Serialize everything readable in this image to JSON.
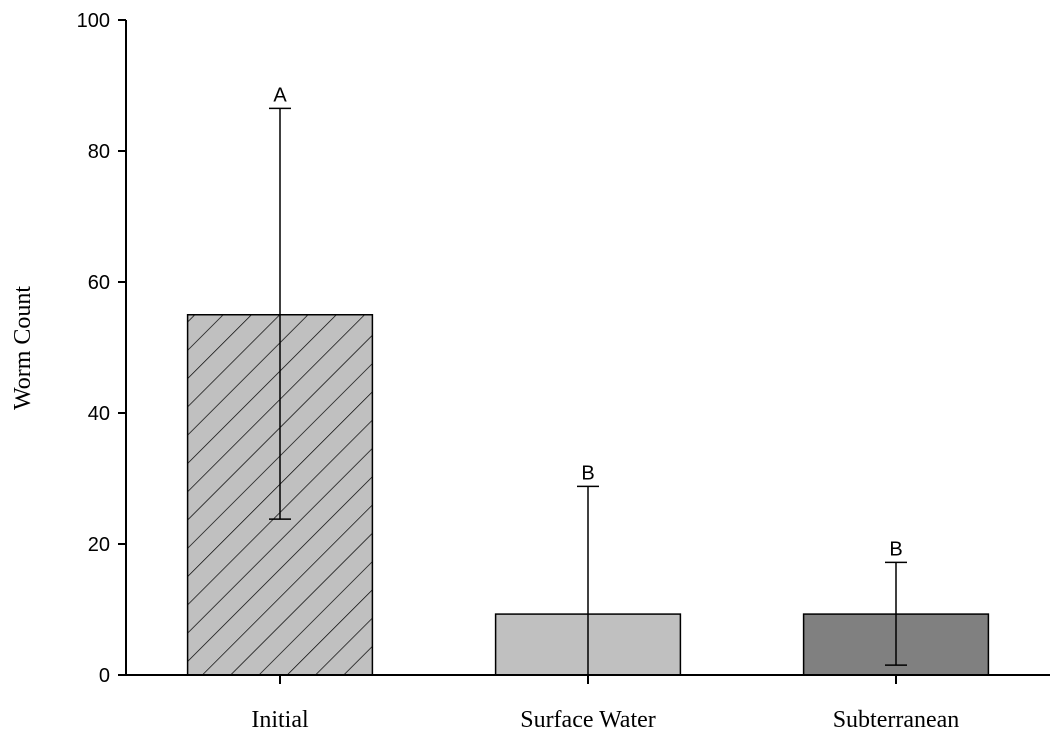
{
  "chart_data": {
    "type": "bar",
    "title": "",
    "xlabel": "",
    "ylabel": "Worm Count",
    "ylim": [
      0,
      100
    ],
    "yticks": [
      0,
      20,
      40,
      60,
      80,
      100
    ],
    "grid": false,
    "categories": [
      "Initial",
      "Surface Water",
      "Subterranean"
    ],
    "values": [
      55,
      9.3,
      9.3
    ],
    "error_upper": [
      86.5,
      28.8,
      17.2
    ],
    "error_lower": [
      23.8,
      null,
      1.5
    ],
    "significance_labels": [
      "A",
      "B",
      "B"
    ],
    "fills": [
      "#c0c0c0",
      "#c0c0c0",
      "#808080"
    ],
    "patterns": [
      "diagonal-hatch",
      "solid",
      "solid"
    ]
  }
}
